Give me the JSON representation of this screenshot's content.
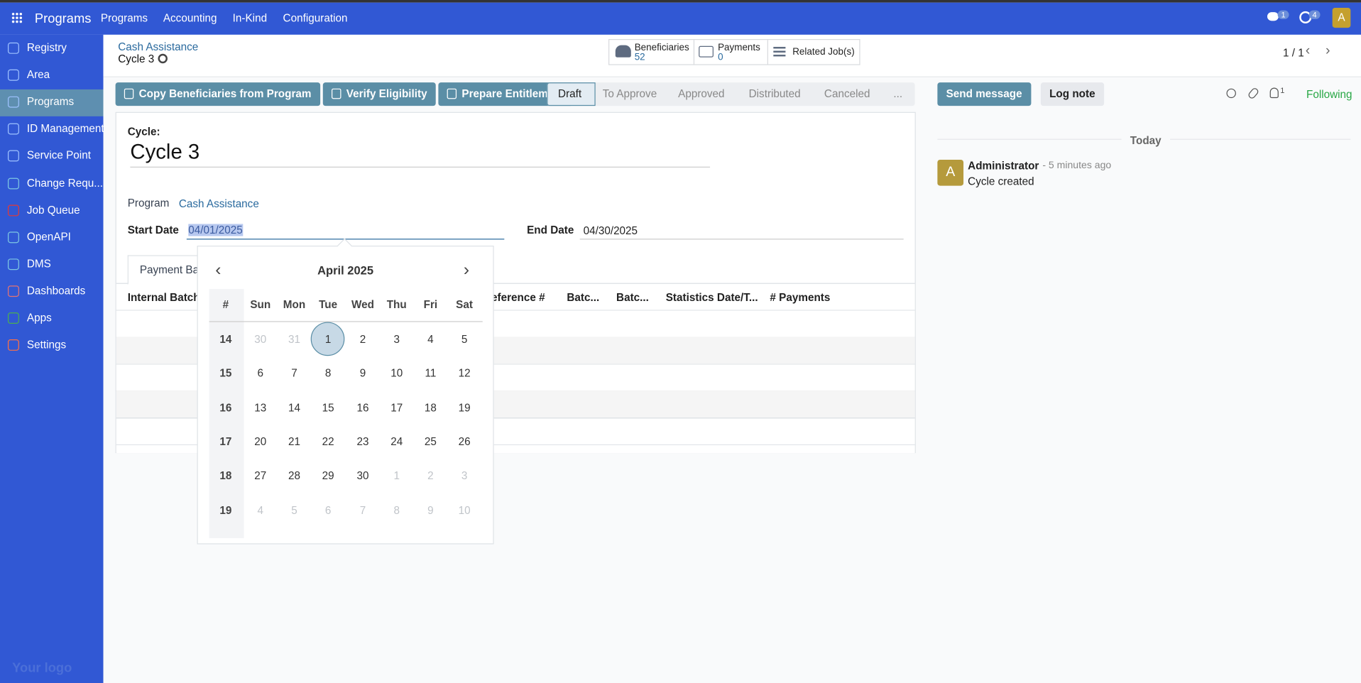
{
  "top_nav": {
    "app_name": "Programs",
    "menu": [
      "Programs",
      "Accounting",
      "In-Kind",
      "Configuration"
    ],
    "messages_count": "1",
    "activities_count": "4",
    "avatar": "A"
  },
  "sidebar": {
    "items": [
      "Registry",
      "Area",
      "Programs",
      "ID Management",
      "Service Point",
      "Change Requ...",
      "Job Queue",
      "OpenAPI",
      "DMS",
      "Dashboards",
      "Apps",
      "Settings"
    ],
    "active": 2,
    "footer": "Your logo"
  },
  "breadcrumb": {
    "parent": "Cash Assistance",
    "current": "Cycle 3"
  },
  "smart_buttons": [
    {
      "label": "Beneficiaries",
      "value": "52"
    },
    {
      "label": "Payments",
      "value": "0"
    },
    {
      "label": "Related Job(s)"
    }
  ],
  "pager": "1 / 1",
  "actions": [
    "Copy Beneficiaries from Program",
    "Verify Eligibility",
    "Prepare Entitlement"
  ],
  "statusbar": {
    "stages": [
      "Draft",
      "To Approve",
      "Approved",
      "Distributed",
      "Canceled",
      "..."
    ],
    "current": 0
  },
  "chatter": {
    "buttons": [
      "Send message",
      "Log note"
    ],
    "followers_count": "1",
    "following": "Following",
    "date_separator": "Today",
    "messages": [
      {
        "avatar": "A",
        "author": "Administrator",
        "time": "- 5 minutes ago",
        "body": "Cycle created"
      }
    ]
  },
  "form": {
    "cycle_label": "Cycle:",
    "cycle_name": "Cycle 3",
    "program_label": "Program",
    "program_value": "Cash Assistance",
    "start_label": "Start Date",
    "start_value": "04/01/2025",
    "end_label": "End Date",
    "end_value": "04/30/2025",
    "tab": "Payment Batches",
    "columns": [
      "Internal Batch ID",
      "Reference #",
      "Batc...",
      "Batc...",
      "Statistics Date/T...",
      "# Payments"
    ]
  },
  "calendar": {
    "month": "April 2025",
    "headers": [
      "#",
      "Sun",
      "Mon",
      "Tue",
      "Wed",
      "Thu",
      "Fri",
      "Sat"
    ],
    "selected": [
      0,
      2
    ],
    "weeks": [
      {
        "number": "14",
        "days": [
          "30",
          "31",
          "1",
          "2",
          "3",
          "4",
          "5"
        ]
      },
      {
        "number": "15",
        "days": [
          "6",
          "7",
          "8",
          "9",
          "10",
          "11",
          "12"
        ]
      },
      {
        "number": "16",
        "days": [
          "13",
          "14",
          "15",
          "16",
          "17",
          "18",
          "19"
        ]
      },
      {
        "number": "17",
        "days": [
          "20",
          "21",
          "22",
          "23",
          "24",
          "25",
          "26"
        ]
      },
      {
        "number": "18",
        "days": [
          "27",
          "28",
          "29",
          "30",
          "1",
          "2",
          "3"
        ]
      },
      {
        "number": "19",
        "days": [
          "4",
          "5",
          "6",
          "7",
          "8",
          "9",
          "10"
        ]
      }
    ]
  }
}
